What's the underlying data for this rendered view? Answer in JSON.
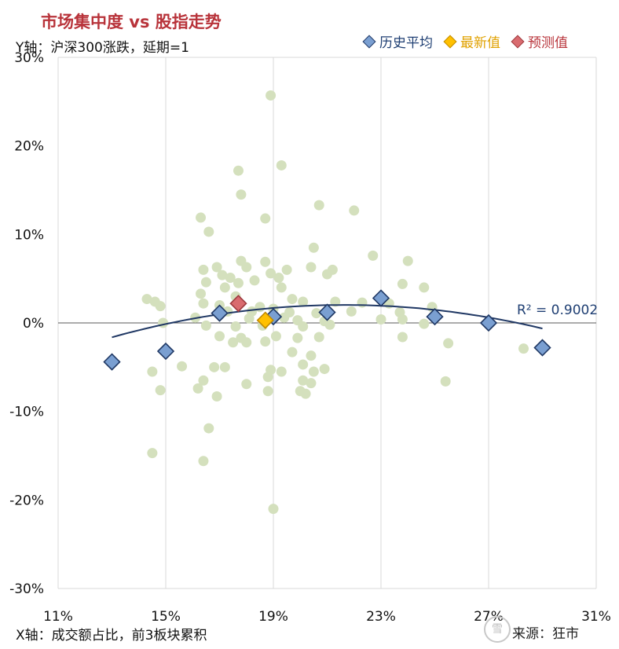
{
  "title": "市场集中度 vs 股指走势",
  "y_note": "Y轴：沪深300涨跌，延期=1",
  "x_note": "X轴：成交额占比，前3板块累积",
  "source": "来源：狂市",
  "watermark": "雪",
  "colors": {
    "title": "#b8333a",
    "scatter": "#d4e0bd",
    "history": "#7a9fd1",
    "history_border": "#203864",
    "latest": "#ffc000",
    "latest_border": "#c08a00",
    "forecast": "#d96b6f",
    "forecast_border": "#9e3b3f",
    "trend": "#203864",
    "grid": "#d9d9d9"
  },
  "chart_data": {
    "type": "scatter",
    "xlim": [
      0.11,
      0.31
    ],
    "ylim": [
      -0.3,
      0.3
    ],
    "x_ticks": [
      {
        "v": 0.11,
        "label": "11%"
      },
      {
        "v": 0.15,
        "label": "15%"
      },
      {
        "v": 0.19,
        "label": "19%"
      },
      {
        "v": 0.23,
        "label": "23%"
      },
      {
        "v": 0.27,
        "label": "27%"
      },
      {
        "v": 0.31,
        "label": "31%"
      }
    ],
    "y_ticks": [
      {
        "v": 0.3,
        "label": "30%"
      },
      {
        "v": 0.2,
        "label": "20%"
      },
      {
        "v": 0.1,
        "label": "10%"
      },
      {
        "v": 0.0,
        "label": "0%"
      },
      {
        "v": -0.1,
        "label": "-10%"
      },
      {
        "v": -0.2,
        "label": "-20%"
      },
      {
        "v": -0.3,
        "label": "-30%"
      }
    ],
    "grid": "vertical",
    "legend_position": "top-right",
    "legend": [
      "历史平均",
      "最新值",
      "预测值"
    ],
    "r2_label": "R² = 0.9002",
    "trendline": {
      "type": "polynomial",
      "a": -4.9,
      "b": 2.12,
      "c": -0.209
    },
    "scatter_points": [
      [
        0.189,
        0.257
      ],
      [
        0.177,
        0.172
      ],
      [
        0.193,
        0.178
      ],
      [
        0.178,
        0.145
      ],
      [
        0.207,
        0.133
      ],
      [
        0.22,
        0.127
      ],
      [
        0.163,
        0.119
      ],
      [
        0.187,
        0.118
      ],
      [
        0.166,
        0.103
      ],
      [
        0.205,
        0.085
      ],
      [
        0.227,
        0.076
      ],
      [
        0.24,
        0.07
      ],
      [
        0.178,
        0.07
      ],
      [
        0.187,
        0.069
      ],
      [
        0.169,
        0.063
      ],
      [
        0.18,
        0.063
      ],
      [
        0.164,
        0.06
      ],
      [
        0.195,
        0.06
      ],
      [
        0.212,
        0.06
      ],
      [
        0.189,
        0.056
      ],
      [
        0.204,
        0.063
      ],
      [
        0.21,
        0.055
      ],
      [
        0.171,
        0.054
      ],
      [
        0.174,
        0.051
      ],
      [
        0.192,
        0.051
      ],
      [
        0.183,
        0.048
      ],
      [
        0.165,
        0.046
      ],
      [
        0.177,
        0.045
      ],
      [
        0.238,
        0.044
      ],
      [
        0.246,
        0.04
      ],
      [
        0.193,
        0.04
      ],
      [
        0.172,
        0.04
      ],
      [
        0.163,
        0.033
      ],
      [
        0.176,
        0.03
      ],
      [
        0.197,
        0.027
      ],
      [
        0.201,
        0.024
      ],
      [
        0.213,
        0.024
      ],
      [
        0.223,
        0.023
      ],
      [
        0.164,
        0.022
      ],
      [
        0.17,
        0.02
      ],
      [
        0.185,
        0.018
      ],
      [
        0.19,
        0.016
      ],
      [
        0.143,
        0.027
      ],
      [
        0.146,
        0.024
      ],
      [
        0.148,
        0.019
      ],
      [
        0.233,
        0.022
      ],
      [
        0.249,
        0.018
      ],
      [
        0.173,
        0.013
      ],
      [
        0.182,
        0.013
      ],
      [
        0.196,
        0.012
      ],
      [
        0.206,
        0.011
      ],
      [
        0.219,
        0.013
      ],
      [
        0.237,
        0.012
      ],
      [
        0.161,
        0.006
      ],
      [
        0.181,
        0.005
      ],
      [
        0.194,
        0.006
      ],
      [
        0.199,
        0.003
      ],
      [
        0.209,
        0.002
      ],
      [
        0.23,
        0.004
      ],
      [
        0.238,
        0.004
      ],
      [
        0.149,
        0.0
      ],
      [
        0.165,
        -0.003
      ],
      [
        0.176,
        -0.004
      ],
      [
        0.186,
        -0.003
      ],
      [
        0.201,
        -0.004
      ],
      [
        0.211,
        -0.002
      ],
      [
        0.246,
        -0.001
      ],
      [
        0.17,
        -0.015
      ],
      [
        0.178,
        -0.017
      ],
      [
        0.191,
        -0.015
      ],
      [
        0.199,
        -0.017
      ],
      [
        0.207,
        -0.016
      ],
      [
        0.238,
        -0.016
      ],
      [
        0.175,
        -0.022
      ],
      [
        0.18,
        -0.022
      ],
      [
        0.187,
        -0.021
      ],
      [
        0.255,
        -0.023
      ],
      [
        0.197,
        -0.033
      ],
      [
        0.204,
        -0.037
      ],
      [
        0.209,
        -0.052
      ],
      [
        0.201,
        -0.047
      ],
      [
        0.156,
        -0.049
      ],
      [
        0.168,
        -0.05
      ],
      [
        0.172,
        -0.05
      ],
      [
        0.189,
        -0.053
      ],
      [
        0.193,
        -0.055
      ],
      [
        0.205,
        -0.055
      ],
      [
        0.145,
        -0.055
      ],
      [
        0.188,
        -0.061
      ],
      [
        0.18,
        -0.069
      ],
      [
        0.164,
        -0.065
      ],
      [
        0.201,
        -0.065
      ],
      [
        0.204,
        -0.068
      ],
      [
        0.254,
        -0.066
      ],
      [
        0.162,
        -0.074
      ],
      [
        0.148,
        -0.076
      ],
      [
        0.188,
        -0.077
      ],
      [
        0.2,
        -0.077
      ],
      [
        0.202,
        -0.08
      ],
      [
        0.169,
        -0.083
      ],
      [
        0.283,
        -0.029
      ],
      [
        0.166,
        -0.119
      ],
      [
        0.145,
        -0.147
      ],
      [
        0.164,
        -0.156
      ],
      [
        0.19,
        -0.21
      ]
    ],
    "series": [
      {
        "name": "历史平均",
        "points": [
          [
            0.13,
            -0.044
          ],
          [
            0.15,
            -0.032
          ],
          [
            0.17,
            0.011
          ],
          [
            0.19,
            0.007
          ],
          [
            0.21,
            0.012
          ],
          [
            0.23,
            0.028
          ],
          [
            0.25,
            0.007
          ],
          [
            0.27,
            0.0
          ],
          [
            0.29,
            -0.028
          ]
        ]
      },
      {
        "name": "最新值",
        "points": [
          [
            0.187,
            0.003
          ]
        ]
      },
      {
        "name": "预测值",
        "points": [
          [
            0.177,
            0.022
          ]
        ]
      }
    ]
  }
}
